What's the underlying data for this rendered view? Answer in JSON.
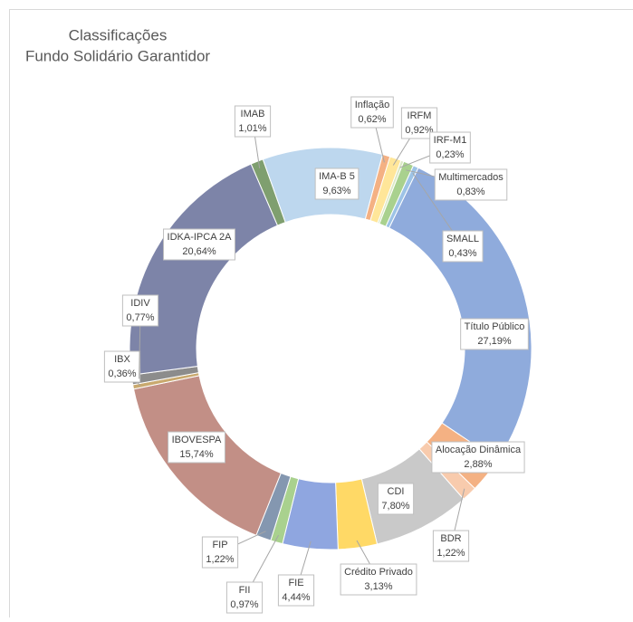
{
  "chart_data": {
    "type": "donut",
    "title": "Classificações",
    "subtitle": "Fundo Solidário Garantidor",
    "start_angle": 15,
    "categories": [
      "Inflação",
      "IRFM",
      "IRF-M1",
      "Multimercados",
      "SMALL",
      "Título Público",
      "Alocação Dinâmica",
      "BDR",
      "CDI",
      "Crédito Privado",
      "FIE",
      "FII",
      "FIP",
      "IBOVESPA",
      "IBX",
      "IDIV",
      "IDKA-IPCA 2A",
      "IMAB",
      "IMA-B 5"
    ],
    "values": [
      0.62,
      0.92,
      0.23,
      0.83,
      0.43,
      27.19,
      2.88,
      1.22,
      7.8,
      3.13,
      4.44,
      0.97,
      1.22,
      15.74,
      0.36,
      0.77,
      20.64,
      1.01,
      9.63
    ],
    "value_labels": [
      "0,62%",
      "0,92%",
      "0,23%",
      "0,83%",
      "0,43%",
      "27,19%",
      "2,88%",
      "1,22%",
      "7,80%",
      "3,13%",
      "4,44%",
      "0,97%",
      "1,22%",
      "15,74%",
      "0,36%",
      "0,77%",
      "20,64%",
      "1,01%",
      "9,63%"
    ],
    "colors": [
      "#f4b183",
      "#ffe699",
      "#dbe8c4",
      "#a9d18e",
      "#9dc3e6",
      "#8fabdc",
      "#f4b183",
      "#f8cbad",
      "#c9c9c9",
      "#ffd966",
      "#8fa6e0",
      "#a9d18e",
      "#8497b0",
      "#c28f86",
      "#c9a96e",
      "#8c8c8c",
      "#7d84a8",
      "#7f9f6f",
      "#bdd7ee"
    ]
  }
}
